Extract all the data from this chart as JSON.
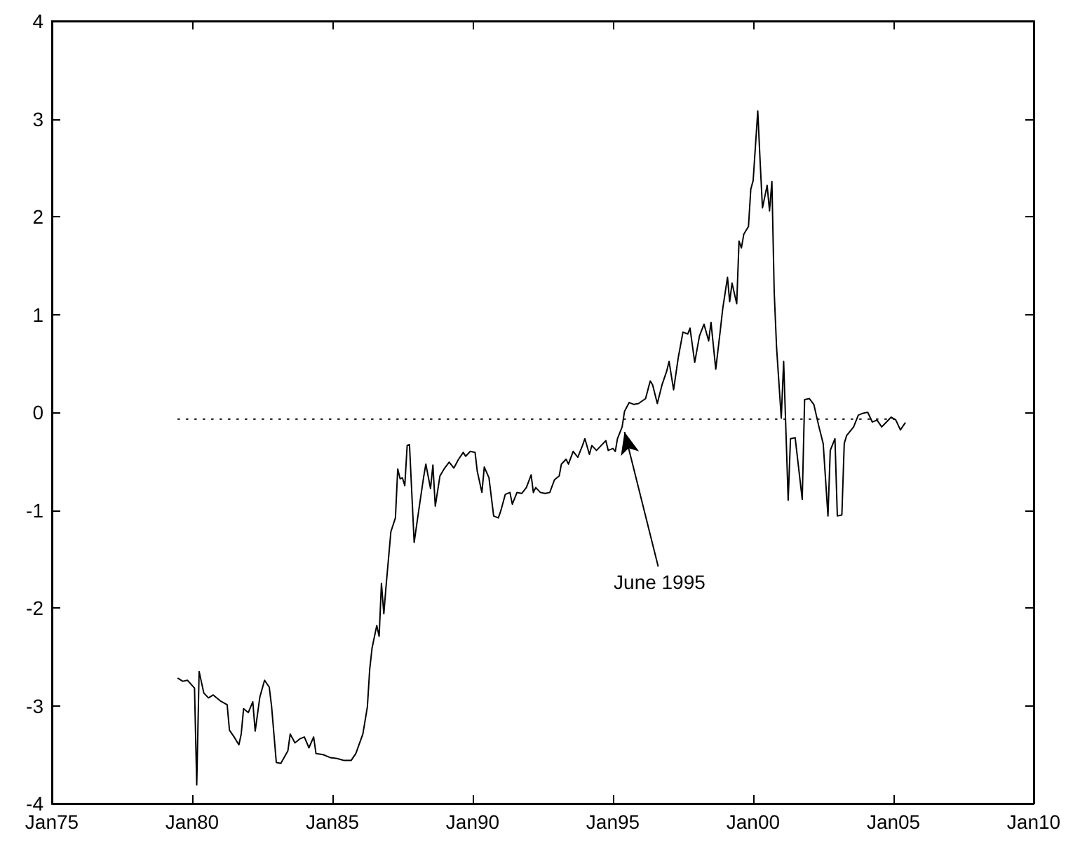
{
  "chart_data": {
    "type": "line",
    "xlim": [
      "1975-01",
      "2010-01"
    ],
    "xticks": [
      {
        "value": "1975-01",
        "label": "Jan75"
      },
      {
        "value": "1980-01",
        "label": "Jan80"
      },
      {
        "value": "1985-01",
        "label": "Jan85"
      },
      {
        "value": "1990-01",
        "label": "Jan90"
      },
      {
        "value": "1995-01",
        "label": "Jan95"
      },
      {
        "value": "2000-01",
        "label": "Jan00"
      },
      {
        "value": "2005-01",
        "label": "Jan05"
      },
      {
        "value": "2010-01",
        "label": "Jan10"
      }
    ],
    "ylim": [
      -4,
      4
    ],
    "yticks": [
      -4,
      -3,
      -2,
      -1,
      0,
      1,
      2,
      3,
      4
    ],
    "grid": false,
    "marker": "none",
    "annotations": [
      {
        "text": "June 1995",
        "x": "1995-06",
        "y": -0.2
      }
    ],
    "series": [
      {
        "color": "#000000",
        "line_style": "solid",
        "x": [
          "1979-07",
          "1979-09",
          "1979-11",
          "1980-02",
          "1980-03",
          "1980-04",
          "1980-06",
          "1980-08",
          "1980-10",
          "1981-01",
          "1981-04",
          "1981-05",
          "1981-07",
          "1981-09",
          "1981-10",
          "1981-11",
          "1982-01",
          "1982-03",
          "1982-04",
          "1982-06",
          "1982-08",
          "1982-10",
          "1982-11",
          "1983-01",
          "1983-03",
          "1983-06",
          "1983-07",
          "1983-09",
          "1983-11",
          "1984-01",
          "1984-03",
          "1984-05",
          "1984-06",
          "1984-09",
          "1984-12",
          "1985-03",
          "1985-06",
          "1985-09",
          "1985-11",
          "1986-02",
          "1986-04",
          "1986-05",
          "1986-06",
          "1986-08",
          "1986-09",
          "1986-10",
          "1986-11",
          "1986-12",
          "1987-02",
          "1987-04",
          "1987-05",
          "1987-06",
          "1987-07",
          "1987-08",
          "1987-09",
          "1987-10",
          "1987-12",
          "1988-02",
          "1988-04",
          "1988-05",
          "1988-07",
          "1988-08",
          "1988-09",
          "1988-11",
          "1989-01",
          "1989-03",
          "1989-05",
          "1989-07",
          "1989-09",
          "1989-10",
          "1989-12",
          "1990-02",
          "1990-03",
          "1990-05",
          "1990-06",
          "1990-08",
          "1990-10",
          "1990-12",
          "1991-01",
          "1991-03",
          "1991-05",
          "1991-06",
          "1991-08",
          "1991-10",
          "1991-12",
          "1992-02",
          "1992-03",
          "1992-04",
          "1992-06",
          "1992-08",
          "1992-10",
          "1992-12",
          "1993-02",
          "1993-03",
          "1993-05",
          "1993-06",
          "1993-08",
          "1993-10",
          "1993-12",
          "1994-01",
          "1994-03",
          "1994-04",
          "1994-06",
          "1994-08",
          "1994-10",
          "1994-11",
          "1995-01",
          "1995-02",
          "1995-03",
          "1995-05",
          "1995-06",
          "1995-08",
          "1995-10",
          "1995-12",
          "1996-03",
          "1996-05",
          "1996-06",
          "1996-08",
          "1996-10",
          "1996-12",
          "1997-01",
          "1997-03",
          "1997-05",
          "1997-07",
          "1997-09",
          "1997-10",
          "1997-12",
          "1998-02",
          "1998-04",
          "1998-06",
          "1998-07",
          "1998-09",
          "1998-11",
          "1998-12",
          "1999-02",
          "1999-03",
          "1999-04",
          "1999-06",
          "1999-07",
          "1999-08",
          "1999-09",
          "1999-11",
          "1999-12",
          "2000-01",
          "2000-03",
          "2000-04",
          "2000-05",
          "2000-07",
          "2000-08",
          "2000-09",
          "2000-10",
          "2000-11",
          "2001-01",
          "2001-02",
          "2001-04",
          "2001-05",
          "2001-07",
          "2001-10",
          "2001-11",
          "2002-01",
          "2002-03",
          "2002-05",
          "2002-07",
          "2002-09",
          "2002-10",
          "2002-12",
          "2003-01",
          "2003-03",
          "2003-04",
          "2003-05",
          "2003-08",
          "2003-10",
          "2003-12",
          "2004-02",
          "2004-04",
          "2004-06",
          "2004-08",
          "2004-10",
          "2004-12",
          "2005-02",
          "2005-04",
          "2005-06"
        ],
        "values": [
          -2.72,
          -2.75,
          -2.74,
          -2.82,
          -3.81,
          -2.65,
          -2.87,
          -2.92,
          -2.89,
          -2.95,
          -2.99,
          -3.25,
          -3.32,
          -3.4,
          -3.29,
          -3.03,
          -3.07,
          -2.96,
          -3.26,
          -2.91,
          -2.74,
          -2.81,
          -3.01,
          -3.58,
          -3.59,
          -3.46,
          -3.29,
          -3.38,
          -3.34,
          -3.32,
          -3.43,
          -3.32,
          -3.49,
          -3.5,
          -3.53,
          -3.54,
          -3.56,
          -3.56,
          -3.49,
          -3.29,
          -3.01,
          -2.63,
          -2.41,
          -2.18,
          -2.29,
          -1.75,
          -2.06,
          -1.77,
          -1.22,
          -1.08,
          -0.58,
          -0.68,
          -0.67,
          -0.75,
          -0.34,
          -0.33,
          -1.33,
          -0.99,
          -0.67,
          -0.53,
          -0.78,
          -0.54,
          -0.96,
          -0.65,
          -0.57,
          -0.51,
          -0.57,
          -0.48,
          -0.41,
          -0.45,
          -0.4,
          -0.41,
          -0.6,
          -0.82,
          -0.56,
          -0.67,
          -1.06,
          -1.08,
          -1.01,
          -0.84,
          -0.82,
          -0.94,
          -0.82,
          -0.83,
          -0.77,
          -0.64,
          -0.82,
          -0.77,
          -0.82,
          -0.83,
          -0.82,
          -0.69,
          -0.65,
          -0.53,
          -0.48,
          -0.53,
          -0.4,
          -0.46,
          -0.34,
          -0.27,
          -0.43,
          -0.34,
          -0.39,
          -0.34,
          -0.29,
          -0.39,
          -0.37,
          -0.4,
          -0.27,
          -0.15,
          0.01,
          0.1,
          0.08,
          0.09,
          0.14,
          0.32,
          0.28,
          0.09,
          0.28,
          0.42,
          0.52,
          0.23,
          0.56,
          0.82,
          0.8,
          0.86,
          0.51,
          0.78,
          0.9,
          0.73,
          0.92,
          0.44,
          0.85,
          1.06,
          1.38,
          1.13,
          1.32,
          1.11,
          1.75,
          1.68,
          1.82,
          1.9,
          2.28,
          2.37,
          3.08,
          2.56,
          2.09,
          2.32,
          2.06,
          2.36,
          1.23,
          0.66,
          -0.06,
          0.52,
          -0.9,
          -0.27,
          -0.26,
          -0.89,
          0.13,
          0.14,
          0.08,
          -0.13,
          -0.32,
          -1.06,
          -0.39,
          -0.27,
          -1.06,
          -1.05,
          -0.32,
          -0.24,
          -0.15,
          -0.03,
          -0.01,
          0.0,
          -0.1,
          -0.08,
          -0.15,
          -0.1,
          -0.05,
          -0.08,
          -0.18,
          -0.11
        ]
      },
      {
        "color": "#000000",
        "line_style": "dotted",
        "x": [
          "1979-07",
          "2005-02"
        ],
        "values": [
          -0.07,
          -0.07
        ]
      }
    ]
  }
}
